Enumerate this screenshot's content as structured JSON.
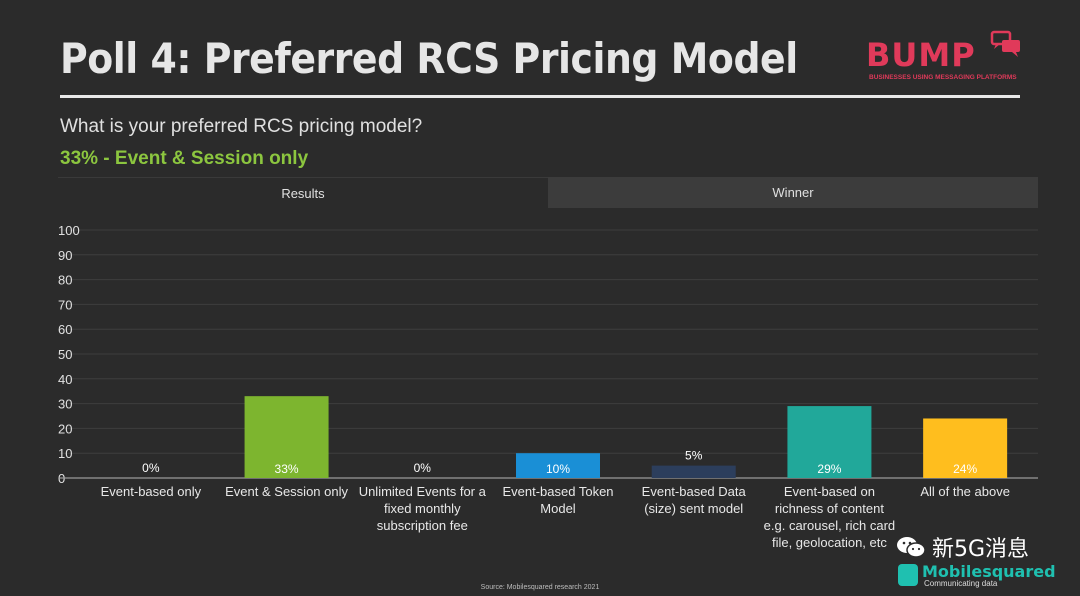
{
  "header": {
    "title": "Poll 4: Preferred RCS Pricing Model",
    "logo_word": "BUMP",
    "logo_tagline": "BUSINESSES USING MESSAGING PLATFORMS"
  },
  "poll": {
    "question": "What is your preferred RCS pricing model?",
    "winner_text": "33% - Event & Session only"
  },
  "tabs": [
    {
      "label": "Results",
      "active": true
    },
    {
      "label": "Winner",
      "active": false
    }
  ],
  "chart_data": {
    "type": "bar",
    "categories": [
      [
        "Event-based only"
      ],
      [
        "Event & Session only"
      ],
      [
        "Unlimited Events for a",
        "fixed monthly",
        "subscription fee"
      ],
      [
        "Event-based Token",
        "Model"
      ],
      [
        "Event-based Data",
        "(size) sent model"
      ],
      [
        "Event-based on",
        "richness of content",
        "e.g. carousel, rich card",
        "file, geolocation, etc"
      ],
      [
        "All of the above"
      ]
    ],
    "values": [
      0,
      33,
      0,
      10,
      5,
      29,
      24
    ],
    "value_labels": [
      "0%",
      "33%",
      "0%",
      "10%",
      "5%",
      "29%",
      "24%"
    ],
    "colors": [
      "#7db52f",
      "#7db52f",
      "#7db52f",
      "#1a8fd6",
      "#2c3e5c",
      "#21a89a",
      "#ffbe1e"
    ],
    "ylim": [
      0,
      100
    ],
    "yticks": [
      0,
      10,
      20,
      30,
      40,
      50,
      60,
      70,
      80,
      90,
      100
    ],
    "grid": true
  },
  "footer": {
    "source": "Source: Mobilesquared research 2021"
  },
  "watermark": {
    "wechat_text": "新5G消息",
    "brand": "Mobilesquared",
    "tagline": "Communicating data"
  }
}
